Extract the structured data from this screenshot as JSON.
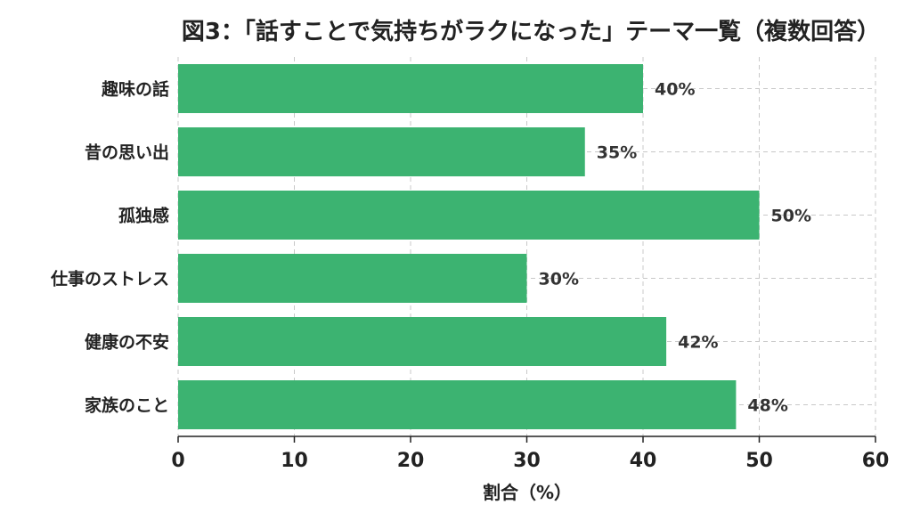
{
  "chart_data": {
    "type": "bar",
    "orientation": "horizontal",
    "title": "図3：「話すことで気持ちがラクになった」テーマ一覧（複数回答）",
    "xlabel": "割合（%）",
    "ylabel": "",
    "categories": [
      "趣味の話",
      "昔の思い出",
      "孤独感",
      "仕事のストレス",
      "健康の不安",
      "家族のこと"
    ],
    "values": [
      40,
      35,
      50,
      30,
      42,
      48
    ],
    "data_labels": [
      "40%",
      "35%",
      "50%",
      "30%",
      "42%",
      "48%"
    ],
    "xlim": [
      0,
      60
    ],
    "xticks": [
      0,
      10,
      20,
      30,
      40,
      50,
      60
    ],
    "xtick_labels": [
      "0",
      "10",
      "20",
      "30",
      "40",
      "50",
      "60"
    ],
    "bar_color": "#3cb371",
    "grid": true
  }
}
